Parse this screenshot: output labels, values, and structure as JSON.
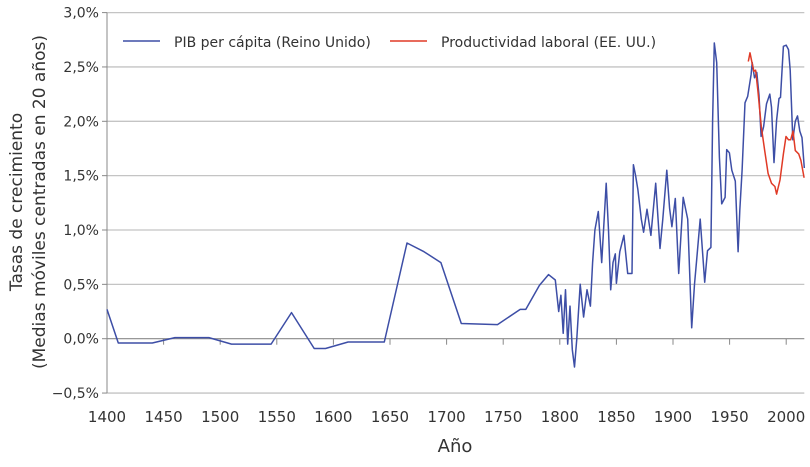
{
  "chart_data": {
    "type": "line",
    "title": "",
    "xlabel": "Año",
    "ylabel_lines": [
      "Tasas de crecimiento",
      "(Medias móviles centradas en 20 años)"
    ],
    "xlim": [
      1400,
      2016
    ],
    "ylim": [
      -0.5,
      3.0
    ],
    "x_ticks": [
      1400,
      1450,
      1500,
      1550,
      1600,
      1650,
      1700,
      1750,
      1800,
      1850,
      1900,
      1950,
      2000
    ],
    "x_tick_labels": [
      "1400",
      "1450",
      "1500",
      "1550",
      "1600",
      "1650",
      "1700",
      "1750",
      "1800",
      "1850",
      "1900",
      "1950",
      "2000"
    ],
    "y_ticks": [
      -0.5,
      0,
      0.5,
      1.0,
      1.5,
      2.0,
      2.5,
      3.0
    ],
    "y_tick_labels": [
      "−0,5%",
      "0,0%",
      "0,5%",
      "1,0%",
      "1,5%",
      "2,0%",
      "2,5%",
      "3,0%"
    ],
    "grid": "horizontal",
    "legend_position": "top",
    "series": [
      {
        "name": "PIB per cápita (Reino Unido)",
        "color": "#3d4ea6",
        "points": [
          [
            1400,
            0.27
          ],
          [
            1410,
            -0.04
          ],
          [
            1440,
            -0.04
          ],
          [
            1460,
            0.01
          ],
          [
            1490,
            0.01
          ],
          [
            1510,
            -0.05
          ],
          [
            1545,
            -0.05
          ],
          [
            1563,
            0.24
          ],
          [
            1583,
            -0.09
          ],
          [
            1593,
            -0.09
          ],
          [
            1613,
            -0.03
          ],
          [
            1645,
            -0.03
          ],
          [
            1665,
            0.88
          ],
          [
            1680,
            0.8
          ],
          [
            1695,
            0.7
          ],
          [
            1713,
            0.14
          ],
          [
            1745,
            0.13
          ],
          [
            1765,
            0.27
          ],
          [
            1770,
            0.27
          ],
          [
            1782,
            0.49
          ],
          [
            1790,
            0.59
          ],
          [
            1796,
            0.54
          ],
          [
            1799,
            0.25
          ],
          [
            1801,
            0.4
          ],
          [
            1803,
            0.05
          ],
          [
            1805,
            0.45
          ],
          [
            1807,
            -0.05
          ],
          [
            1809,
            0.3
          ],
          [
            1811,
            -0.1
          ],
          [
            1813,
            -0.26
          ],
          [
            1815,
            0.0
          ],
          [
            1818,
            0.5
          ],
          [
            1821,
            0.2
          ],
          [
            1824,
            0.45
          ],
          [
            1827,
            0.3
          ],
          [
            1829,
            0.7
          ],
          [
            1831,
            1.0
          ],
          [
            1834,
            1.17
          ],
          [
            1837,
            0.7
          ],
          [
            1841,
            1.43
          ],
          [
            1843,
            1.0
          ],
          [
            1845,
            0.45
          ],
          [
            1847,
            0.7
          ],
          [
            1849,
            0.78
          ],
          [
            1850,
            0.51
          ],
          [
            1853,
            0.8
          ],
          [
            1856.6,
            0.95
          ],
          [
            1860,
            0.6
          ],
          [
            1863.8,
            0.6
          ],
          [
            1865,
            1.6
          ],
          [
            1867,
            1.5
          ],
          [
            1869,
            1.37
          ],
          [
            1872,
            1.1
          ],
          [
            1874,
            0.98
          ],
          [
            1877,
            1.19
          ],
          [
            1880.5,
            0.95
          ],
          [
            1884.7,
            1.43
          ],
          [
            1888.5,
            0.83
          ],
          [
            1891,
            1.1
          ],
          [
            1894.5,
            1.55
          ],
          [
            1897,
            1.2
          ],
          [
            1899,
            1.03
          ],
          [
            1902,
            1.29
          ],
          [
            1905,
            0.6
          ],
          [
            1909,
            1.3
          ],
          [
            1913,
            1.1
          ],
          [
            1916.5,
            0.1
          ],
          [
            1919,
            0.5
          ],
          [
            1921,
            0.74
          ],
          [
            1924,
            1.1
          ],
          [
            1928,
            0.52
          ],
          [
            1930.5,
            0.81
          ],
          [
            1933.5,
            0.84
          ],
          [
            1935,
            2.0
          ],
          [
            1936.5,
            2.72
          ],
          [
            1938.6,
            2.54
          ],
          [
            1941,
            1.67
          ],
          [
            1943,
            1.24
          ],
          [
            1946,
            1.3
          ],
          [
            1947.4,
            1.74
          ],
          [
            1949.8,
            1.71
          ],
          [
            1951.9,
            1.55
          ],
          [
            1955,
            1.45
          ],
          [
            1957.5,
            0.8
          ],
          [
            1959,
            1.18
          ],
          [
            1961,
            1.55
          ],
          [
            1963.6,
            2.17
          ],
          [
            1966,
            2.23
          ],
          [
            1969,
            2.43
          ],
          [
            1970,
            2.54
          ],
          [
            1972,
            2.4
          ],
          [
            1974,
            2.45
          ],
          [
            1976,
            2.24
          ],
          [
            1977.8,
            1.86
          ],
          [
            1980,
            1.95
          ],
          [
            1982.6,
            2.16
          ],
          [
            1985.5,
            2.25
          ],
          [
            1987,
            2.13
          ],
          [
            1989.2,
            1.62
          ],
          [
            1991.5,
            2.01
          ],
          [
            1993.6,
            2.21
          ],
          [
            1995,
            2.22
          ],
          [
            1997.5,
            2.69
          ],
          [
            2000,
            2.7
          ],
          [
            2002,
            2.66
          ],
          [
            2003.5,
            2.47
          ],
          [
            2005.8,
            1.83
          ],
          [
            2008,
            2.0
          ],
          [
            2010,
            2.05
          ],
          [
            2012,
            1.91
          ],
          [
            2014,
            1.85
          ],
          [
            2016,
            1.57
          ]
        ]
      },
      {
        "name": "Productividad laboral (EE. UU.)",
        "color": "#e03a26",
        "points": [
          [
            1966.5,
            2.55
          ],
          [
            1968,
            2.63
          ],
          [
            1970,
            2.53
          ],
          [
            1971.5,
            2.46
          ],
          [
            1973,
            2.47
          ],
          [
            1975,
            2.28
          ],
          [
            1978,
            1.95
          ],
          [
            1981,
            1.73
          ],
          [
            1984,
            1.52
          ],
          [
            1987,
            1.43
          ],
          [
            1990,
            1.4
          ],
          [
            1991.5,
            1.33
          ],
          [
            1994.5,
            1.46
          ],
          [
            1997.5,
            1.7
          ],
          [
            1999.8,
            1.86
          ],
          [
            2002,
            1.83
          ],
          [
            2004,
            1.83
          ],
          [
            2006,
            1.91
          ],
          [
            2008,
            1.73
          ],
          [
            2011,
            1.7
          ],
          [
            2013,
            1.64
          ],
          [
            2015.8,
            1.48
          ]
        ]
      }
    ]
  }
}
